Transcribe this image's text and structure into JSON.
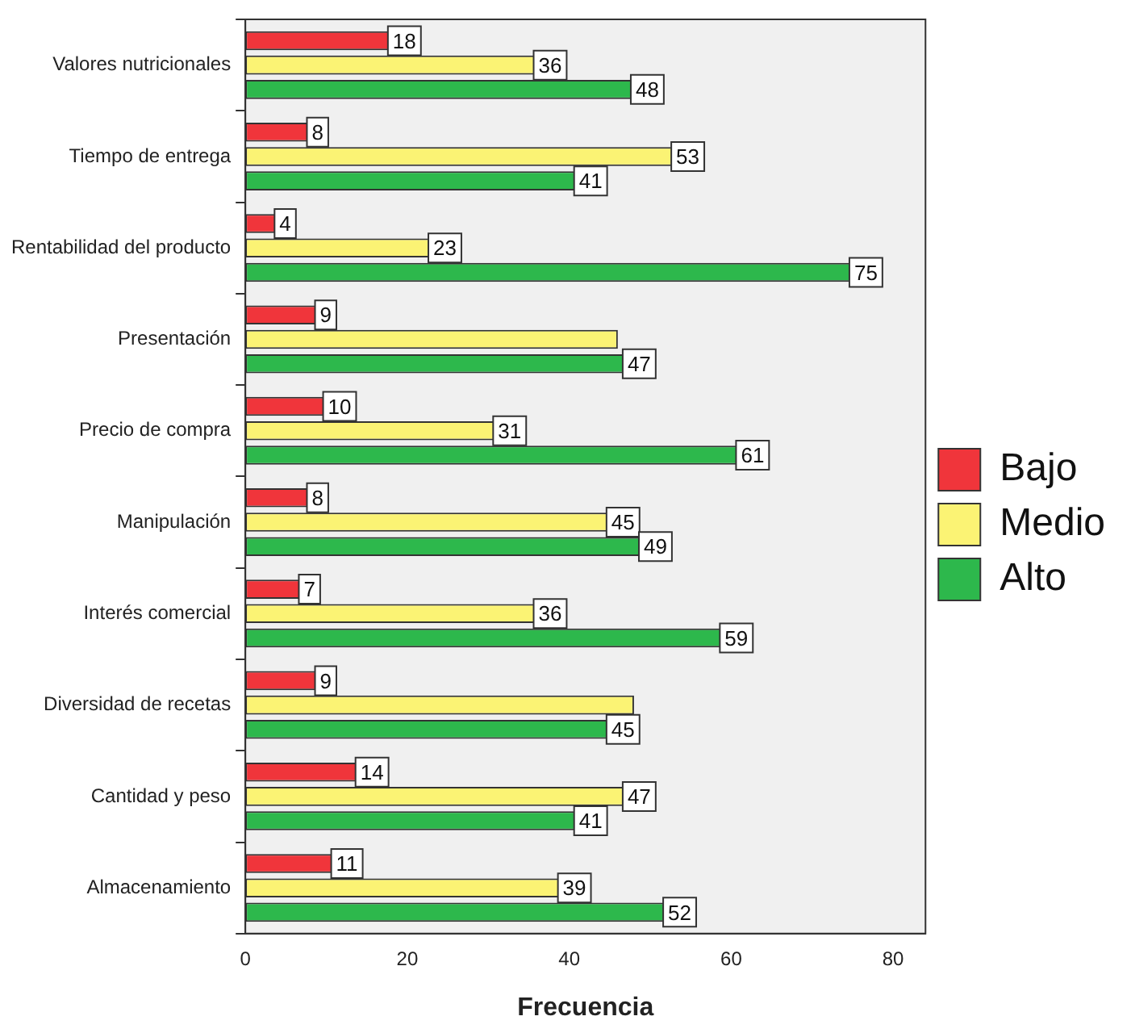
{
  "chart_data": {
    "type": "bar",
    "orientation": "horizontal",
    "xlabel": "Frecuencia",
    "categories": [
      "Valores nutricionales",
      "Tiempo de entrega",
      "Rentabilidad del producto",
      "Presentación",
      "Precio de compra",
      "Manipulación",
      "Interés comercial",
      "Diversidad de recetas",
      "Cantidad y peso",
      "Almacenamiento"
    ],
    "series": [
      {
        "name": "Bajo",
        "color": "#f0353b",
        "values": [
          18,
          8,
          4,
          9,
          10,
          8,
          7,
          9,
          14,
          11
        ],
        "value_labels": [
          "18",
          "8",
          "4",
          "9",
          "10",
          "8",
          "7",
          "9",
          "14",
          "11"
        ]
      },
      {
        "name": "Medio",
        "color": "#fbf374",
        "values": [
          36,
          53,
          23,
          46,
          31,
          45,
          36,
          48,
          47,
          39
        ],
        "value_labels": [
          "36",
          "53",
          "23",
          null,
          "31",
          "45",
          "36",
          null,
          "47",
          "39"
        ]
      },
      {
        "name": "Alto",
        "color": "#2db84c",
        "values": [
          48,
          41,
          75,
          47,
          61,
          49,
          59,
          45,
          41,
          52
        ],
        "value_labels": [
          "48",
          "41",
          "75",
          "47",
          "61",
          "49",
          "59",
          "45",
          "41",
          "52"
        ]
      }
    ],
    "xlim": [
      0,
      84
    ],
    "xticks": [
      0,
      20,
      40,
      60,
      80
    ],
    "grid": false,
    "legend": "right"
  }
}
